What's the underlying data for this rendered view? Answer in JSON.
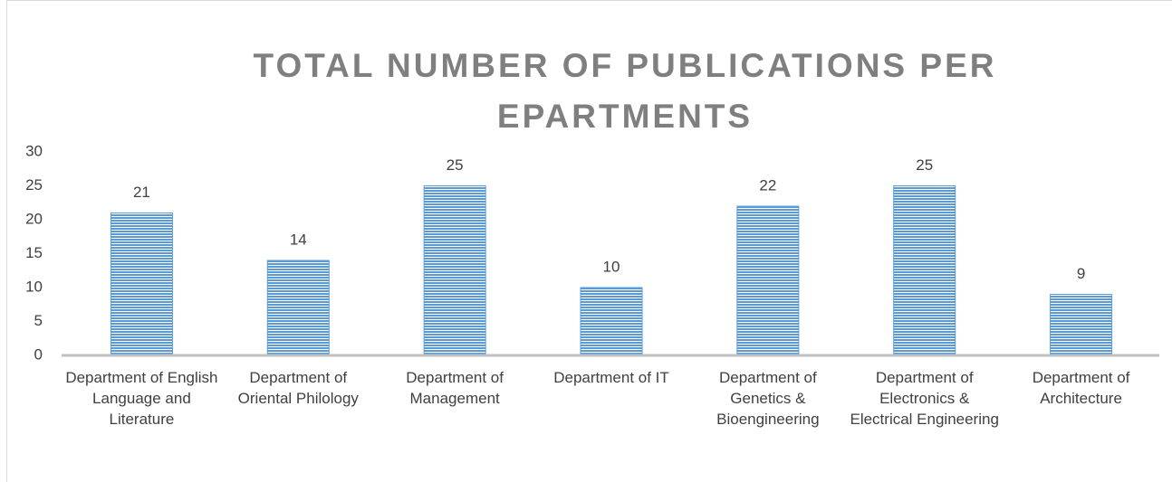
{
  "chart_data": {
    "type": "bar",
    "title": "TOTAL NUMBER OF PUBLICATIONS PER EPARTMENTS",
    "categories": [
      "Department of English Language and Literature",
      "Department of Oriental Philology",
      "Department of Management",
      "Department of IT",
      "Department of Genetics & Bioengineering",
      "Department of Electronics & Electrical Engineering",
      "Department of Architecture"
    ],
    "values": [
      21,
      14,
      25,
      10,
      22,
      25,
      9
    ],
    "color": "#5b9bd5",
    "ylim": [
      0,
      30
    ],
    "yticks": [
      0,
      5,
      10,
      15,
      20,
      25,
      30
    ],
    "grid": false
  }
}
